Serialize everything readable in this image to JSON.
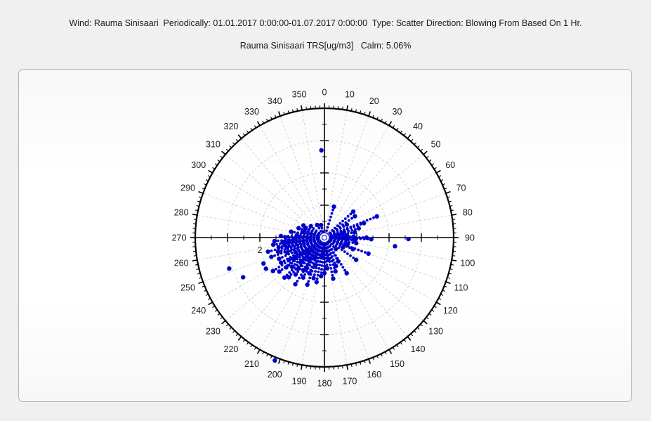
{
  "header": {
    "title": "Wind: Rauma Sinisaari  Periodically: 01.01.2017 0:00:00-01.07.2017 0:00:00  Type: Scatter Direction: Blowing From Based On 1 Hr.",
    "subtitle": "Rauma Sinisaari TRS[ug/m3]   Calm: 5.06%"
  },
  "chart_data": {
    "type": "scatter",
    "projection": "polar",
    "direction": "clockwise-from-north",
    "angle_unit": "degrees",
    "angle_ticks": [
      0,
      10,
      20,
      30,
      40,
      50,
      60,
      70,
      80,
      90,
      100,
      110,
      120,
      130,
      140,
      150,
      160,
      170,
      180,
      190,
      200,
      210,
      220,
      230,
      240,
      250,
      260,
      270,
      280,
      290,
      300,
      310,
      320,
      330,
      340,
      350
    ],
    "angle_tick_labels": [
      "0",
      "10",
      "20",
      "30",
      "40",
      "50",
      "60",
      "70",
      "80",
      "90",
      "100",
      "110",
      "120",
      "130",
      "140",
      "150",
      "160",
      "170",
      "180",
      "190",
      "200",
      "210",
      "220",
      "230",
      "240",
      "250",
      "260",
      "270",
      "280",
      "290",
      "300",
      "310",
      "320",
      "330",
      "340",
      "350"
    ],
    "r_range": [
      0,
      4
    ],
    "r_labeled_ticks": [
      2
    ],
    "r_tick_labels": [
      "2"
    ],
    "grid": true,
    "colors": {
      "points": "#0000cc",
      "outline": "#000000",
      "grid": "#c8c8c8"
    },
    "points": [
      {
        "angle": 358,
        "r": 2.7
      },
      {
        "angle": 17,
        "r": 1.0
      },
      {
        "angle": 48,
        "r": 1.2
      },
      {
        "angle": 55,
        "r": 1.15
      },
      {
        "angle": 60,
        "r": 0.8
      },
      {
        "angle": 68,
        "r": 1.75
      },
      {
        "angle": 70,
        "r": 1.3
      },
      {
        "angle": 75,
        "r": 1.1
      },
      {
        "angle": 76,
        "r": 0.6
      },
      {
        "angle": 80,
        "r": 0.95
      },
      {
        "angle": 83,
        "r": 0.6
      },
      {
        "angle": 85,
        "r": 0.7
      },
      {
        "angle": 88,
        "r": 0.9
      },
      {
        "angle": 90,
        "r": 1.3
      },
      {
        "angle": 91,
        "r": 2.6
      },
      {
        "angle": 92,
        "r": 1.45
      },
      {
        "angle": 94,
        "r": 0.7
      },
      {
        "angle": 95,
        "r": 0.95
      },
      {
        "angle": 97,
        "r": 2.2
      },
      {
        "angle": 100,
        "r": 1.0
      },
      {
        "angle": 105,
        "r": 0.75
      },
      {
        "angle": 110,
        "r": 1.45
      },
      {
        "angle": 112,
        "r": 0.95
      },
      {
        "angle": 118,
        "r": 0.65
      },
      {
        "angle": 125,
        "r": 1.2
      },
      {
        "angle": 135,
        "r": 0.5
      },
      {
        "angle": 148,
        "r": 1.3
      },
      {
        "angle": 150,
        "r": 0.85
      },
      {
        "angle": 158,
        "r": 0.95
      },
      {
        "angle": 162,
        "r": 1.1
      },
      {
        "angle": 168,
        "r": 1.3
      },
      {
        "angle": 170,
        "r": 0.7
      },
      {
        "angle": 175,
        "r": 0.95
      },
      {
        "angle": 180,
        "r": 1.1
      },
      {
        "angle": 185,
        "r": 1.2
      },
      {
        "angle": 188,
        "r": 0.6
      },
      {
        "angle": 190,
        "r": 1.4
      },
      {
        "angle": 195,
        "r": 1.3
      },
      {
        "angle": 198,
        "r": 0.9
      },
      {
        "angle": 200,
        "r": 1.55
      },
      {
        "angle": 202,
        "r": 4.1
      },
      {
        "angle": 203,
        "r": 1.2
      },
      {
        "angle": 205,
        "r": 0.7
      },
      {
        "angle": 208,
        "r": 1.4
      },
      {
        "angle": 210,
        "r": 1.1
      },
      {
        "angle": 212,
        "r": 1.7
      },
      {
        "angle": 213,
        "r": 1.2
      },
      {
        "angle": 215,
        "r": 0.85
      },
      {
        "angle": 218,
        "r": 1.45
      },
      {
        "angle": 220,
        "r": 1.25
      },
      {
        "angle": 222,
        "r": 1.65
      },
      {
        "angle": 224,
        "r": 1.05
      },
      {
        "angle": 225,
        "r": 1.75
      },
      {
        "angle": 228,
        "r": 1.35
      },
      {
        "angle": 230,
        "r": 0.75
      },
      {
        "angle": 232,
        "r": 1.5
      },
      {
        "angle": 233,
        "r": 1.75
      },
      {
        "angle": 235,
        "r": 1.15
      },
      {
        "angle": 237,
        "r": 1.9
      },
      {
        "angle": 238,
        "r": 1.3
      },
      {
        "angle": 240,
        "r": 1.55
      },
      {
        "angle": 242,
        "r": 2.05
      },
      {
        "angle": 243,
        "r": 1.0
      },
      {
        "angle": 244,
        "r": 2.8
      },
      {
        "angle": 245,
        "r": 1.55
      },
      {
        "angle": 247,
        "r": 2.05
      },
      {
        "angle": 248,
        "r": 1.25
      },
      {
        "angle": 250,
        "r": 1.75
      },
      {
        "angle": 252,
        "r": 3.1
      },
      {
        "angle": 253,
        "r": 1.5
      },
      {
        "angle": 255,
        "r": 1.2
      },
      {
        "angle": 256,
        "r": 1.8
      },
      {
        "angle": 258,
        "r": 1.45
      },
      {
        "angle": 260,
        "r": 1.25
      },
      {
        "angle": 262,
        "r": 1.6
      },
      {
        "angle": 264,
        "r": 1.3
      },
      {
        "angle": 265,
        "r": 1.1
      },
      {
        "angle": 266,
        "r": 1.55
      },
      {
        "angle": 268,
        "r": 0.9
      },
      {
        "angle": 270,
        "r": 1.2
      },
      {
        "angle": 272,
        "r": 1.35
      },
      {
        "angle": 275,
        "r": 0.85
      },
      {
        "angle": 280,
        "r": 1.05
      },
      {
        "angle": 285,
        "r": 0.7
      },
      {
        "angle": 290,
        "r": 0.85
      },
      {
        "angle": 295,
        "r": 0.65
      },
      {
        "angle": 300,
        "r": 0.75
      },
      {
        "angle": 310,
        "r": 0.55
      },
      {
        "angle": 330,
        "r": 0.45
      },
      {
        "angle": 345,
        "r": 0.4
      }
    ],
    "fan_density_note_count": 0
  }
}
